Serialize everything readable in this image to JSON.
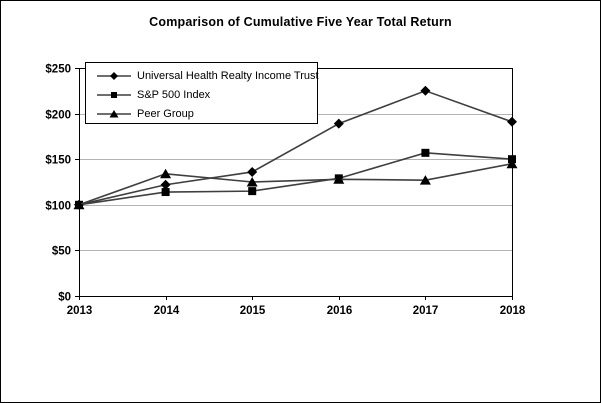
{
  "figure": {
    "background": "#ffffff",
    "border_color": "#000000"
  },
  "chart_data": {
    "type": "line",
    "title": "Comparison of Cumulative Five Year Total Return",
    "categories": [
      "2013",
      "2014",
      "2015",
      "2016",
      "2017",
      "2018"
    ],
    "series": [
      {
        "name": "Universal Health Realty Income Trust",
        "marker": "diamond",
        "values": [
          100,
          122,
          136,
          189,
          225,
          191
        ]
      },
      {
        "name": "S&P 500 Index",
        "marker": "square",
        "values": [
          100,
          114,
          115,
          129,
          157,
          150
        ]
      },
      {
        "name": "Peer Group",
        "marker": "triangle",
        "values": [
          100,
          134,
          125,
          128,
          127,
          145
        ]
      }
    ],
    "ylim": [
      0,
      250
    ],
    "ytick_step": 50,
    "ytick_labels": [
      "$0",
      "$50",
      "$100",
      "$150",
      "$200",
      "$250"
    ],
    "xlabel": "",
    "ylabel": "",
    "grid": "horizontal",
    "legend_position": "top-left-inside",
    "colors": {
      "line": "#3f3f3f",
      "marker": "#000000",
      "gridline": "#b3b3b3",
      "axis": "#000000",
      "text": "#000000"
    }
  }
}
